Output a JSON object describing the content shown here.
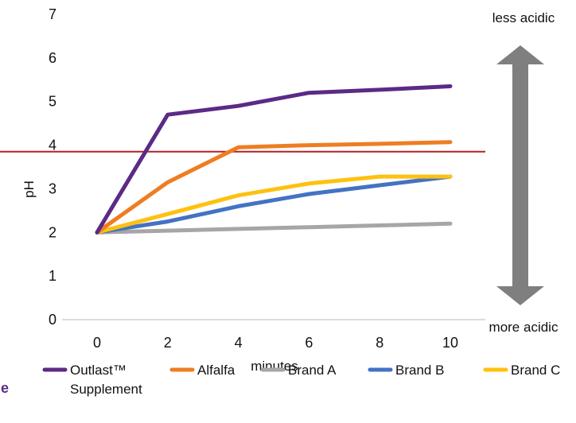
{
  "chart_data": {
    "type": "line",
    "title": "",
    "xlabel": "minutes",
    "ylabel": "pH",
    "x": [
      0,
      2,
      4,
      6,
      8,
      10
    ],
    "x_tick_labels": [
      "0",
      "2",
      "4",
      "6",
      "8",
      "10"
    ],
    "y_tick_labels": [
      "0",
      "1",
      "2",
      "3",
      "4",
      "5",
      "6",
      "7"
    ],
    "xlim": [
      0,
      10
    ],
    "ylim": [
      0,
      7
    ],
    "grid": false,
    "legend_position": "bottom",
    "series": [
      {
        "name": "Outlast™ Supplement",
        "label_lines": [
          "Outlast™",
          "Supplement"
        ],
        "color": "#5b2a86",
        "values": [
          2.0,
          4.7,
          4.9,
          5.2,
          5.27,
          5.35
        ]
      },
      {
        "name": "Alfalfa",
        "label_lines": [
          "Alfalfa"
        ],
        "color": "#ee7d22",
        "values": [
          2.0,
          3.15,
          3.95,
          4.0,
          4.03,
          4.07
        ]
      },
      {
        "name": "Brand A",
        "label_lines": [
          "Brand A"
        ],
        "color": "#a6a6a6",
        "values": [
          2.0,
          2.04,
          2.08,
          2.12,
          2.16,
          2.2
        ]
      },
      {
        "name": "Brand B",
        "label_lines": [
          "Brand B"
        ],
        "color": "#4472c4",
        "values": [
          2.0,
          2.25,
          2.6,
          2.88,
          3.08,
          3.28
        ]
      },
      {
        "name": "Brand C",
        "label_lines": [
          "Brand C"
        ],
        "color": "#fec10f",
        "values": [
          2.0,
          2.42,
          2.85,
          3.12,
          3.28,
          3.28
        ]
      }
    ],
    "reference_line": {
      "y": 3.85,
      "color": "#b52024"
    },
    "annotations": {
      "top": "less acidic",
      "bottom": "more acidic",
      "arrow_color": "#7f7f7f"
    },
    "cut_off_text": {
      "text": "e",
      "color": "#5b2a86"
    }
  }
}
